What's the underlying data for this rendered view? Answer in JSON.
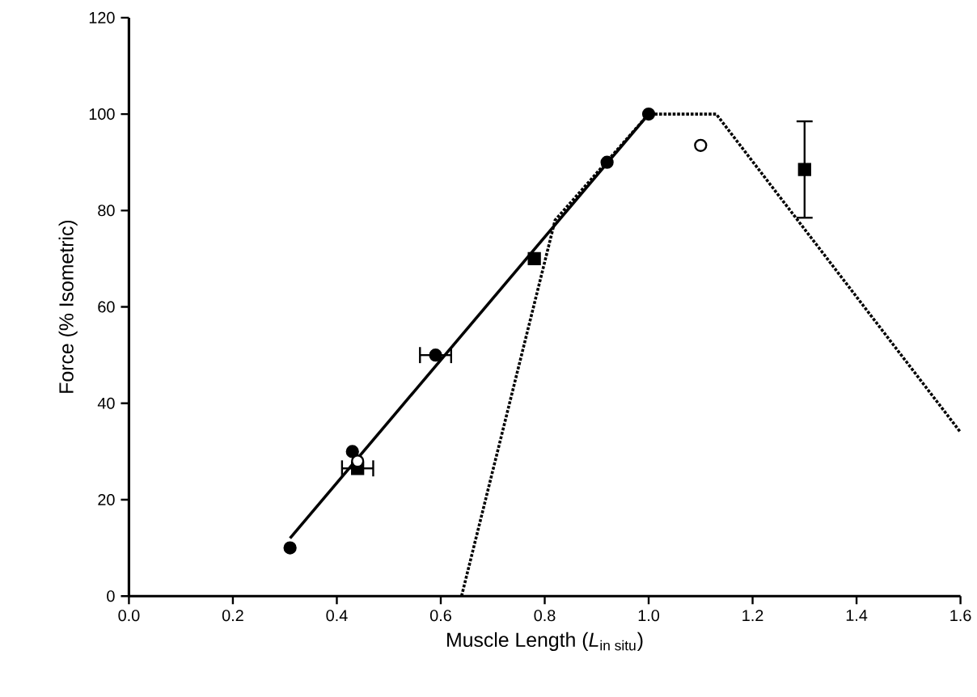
{
  "chart_data": {
    "type": "scatter",
    "xlabel": "\\text{Muscle Length (}\\textit{L}_{\\text{in situ}}\\text{)}",
    "ylabel": "Force (% Isometric)",
    "xlim": [
      0,
      1.6
    ],
    "ylim": [
      0,
      120
    ],
    "xticks": [
      {
        "value": 0,
        "label": "0.0"
      },
      {
        "value": 0.2,
        "label": "0.2"
      },
      {
        "value": 0.4,
        "label": "0.4"
      },
      {
        "value": 0.6,
        "label": "0.6"
      },
      {
        "value": 0.8,
        "label": "0.8"
      },
      {
        "value": 1,
        "label": "1.0"
      },
      {
        "value": 1.2,
        "label": "1.2"
      },
      {
        "value": 1.4,
        "label": "1.4"
      },
      {
        "value": 1.6,
        "label": "1.6"
      }
    ],
    "yticks": [
      0,
      20,
      40,
      60,
      80,
      100,
      120
    ],
    "grid": false,
    "series": [
      {
        "type": "line",
        "color": "#000000",
        "line_style": "solid",
        "marker": "none",
        "x": [
          0.31,
          1.0
        ],
        "values": [
          12,
          100
        ]
      },
      {
        "type": "line",
        "color": "#000000",
        "line_style": "dotted",
        "marker": "none",
        "x": [
          0.64,
          0.82,
          1.0,
          1.13,
          1.6
        ],
        "values": [
          0,
          78,
          100,
          100,
          34
        ]
      },
      {
        "color": "#000000",
        "marker": "circle",
        "x": [
          0.31,
          0.43,
          0.59,
          0.92,
          1.0
        ],
        "values": [
          10,
          30,
          50,
          90,
          100
        ],
        "xerrors": [
          null,
          null,
          0.03,
          null,
          null
        ]
      },
      {
        "color": "#000000",
        "marker": "square",
        "x": [
          0.44,
          0.78,
          1.3
        ],
        "values": [
          26.5,
          70,
          88.5
        ],
        "xerrors": [
          0.03,
          null,
          null
        ],
        "errors": [
          null,
          null,
          10
        ]
      },
      {
        "color": "#ffffff",
        "marker": "circle",
        "x": [
          0.44,
          1.1
        ],
        "values": [
          28,
          93.5
        ]
      }
    ]
  }
}
